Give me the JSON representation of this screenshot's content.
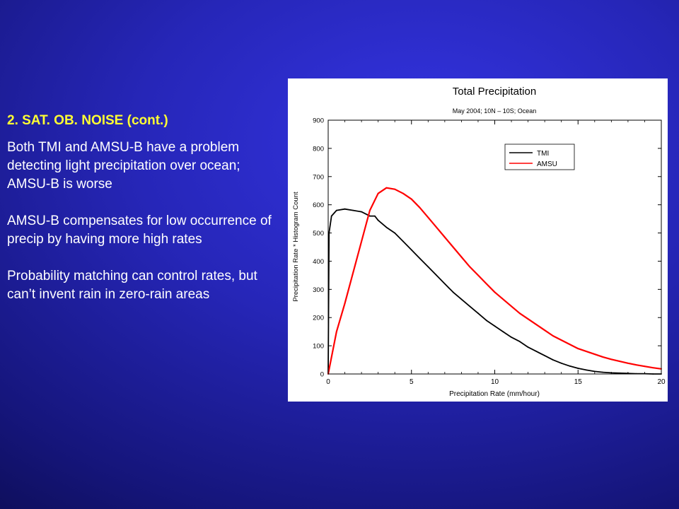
{
  "slide": {
    "heading": "2. SAT. OB. NOISE (cont.)",
    "paragraphs": [
      "Both TMI and AMSU-B have a problem detecting light precipitation over ocean; AMSU-B is worse",
      "AMSU-B compensates for low occurrence of precip by having more high rates",
      "Probability matching can control rates, but can’t invent rain in zero-rain areas"
    ]
  },
  "chart_data": {
    "type": "line",
    "title": "Total Precipitation",
    "subtitle": "May 2004; 10N – 10S; Ocean",
    "xlabel": "Precipitation Rate (mm/hour)",
    "ylabel": "Precipitation Rate * Histogram Count",
    "xlim": [
      0,
      20
    ],
    "ylim": [
      0,
      900
    ],
    "xticks": [
      0,
      5,
      10,
      15,
      20
    ],
    "yticks": [
      0,
      100,
      200,
      300,
      400,
      500,
      600,
      700,
      800,
      900
    ],
    "legend_position": "top-right",
    "series": [
      {
        "name": "TMI",
        "color": "#000000",
        "x": [
          0,
          0.05,
          0.2,
          0.5,
          1,
          1.5,
          2,
          2.5,
          2.8,
          3,
          3.5,
          4,
          4.5,
          5,
          5.5,
          6,
          6.5,
          7,
          7.5,
          8,
          8.5,
          9,
          9.5,
          10,
          10.5,
          11,
          11.5,
          12,
          12.5,
          13,
          13.5,
          14,
          14.5,
          15,
          15.5,
          16,
          16.5,
          17,
          17.5,
          18,
          18.5,
          19,
          19.5,
          20
        ],
        "y": [
          0,
          500,
          560,
          580,
          585,
          580,
          575,
          560,
          560,
          545,
          520,
          500,
          470,
          440,
          410,
          380,
          350,
          320,
          290,
          265,
          240,
          215,
          190,
          170,
          150,
          130,
          115,
          95,
          80,
          65,
          50,
          38,
          28,
          20,
          14,
          9,
          6,
          4,
          3,
          2,
          1,
          1,
          0,
          0
        ]
      },
      {
        "name": "AMSU",
        "color": "#ff0000",
        "x": [
          0,
          0.5,
          1,
          1.5,
          2,
          2.5,
          3,
          3.5,
          4,
          4.5,
          5,
          5.5,
          6,
          6.5,
          7,
          7.5,
          8,
          8.5,
          9,
          9.5,
          10,
          10.5,
          11,
          11.5,
          12,
          12.5,
          13,
          13.5,
          14,
          14.5,
          15,
          15.5,
          16,
          16.5,
          17,
          17.5,
          18,
          18.5,
          19,
          19.5,
          20
        ],
        "y": [
          0,
          150,
          250,
          360,
          470,
          580,
          640,
          660,
          655,
          640,
          620,
          590,
          555,
          520,
          485,
          450,
          415,
          380,
          350,
          320,
          290,
          265,
          240,
          215,
          195,
          175,
          155,
          135,
          120,
          105,
          90,
          80,
          70,
          60,
          52,
          45,
          38,
          32,
          27,
          22,
          18
        ]
      }
    ]
  }
}
